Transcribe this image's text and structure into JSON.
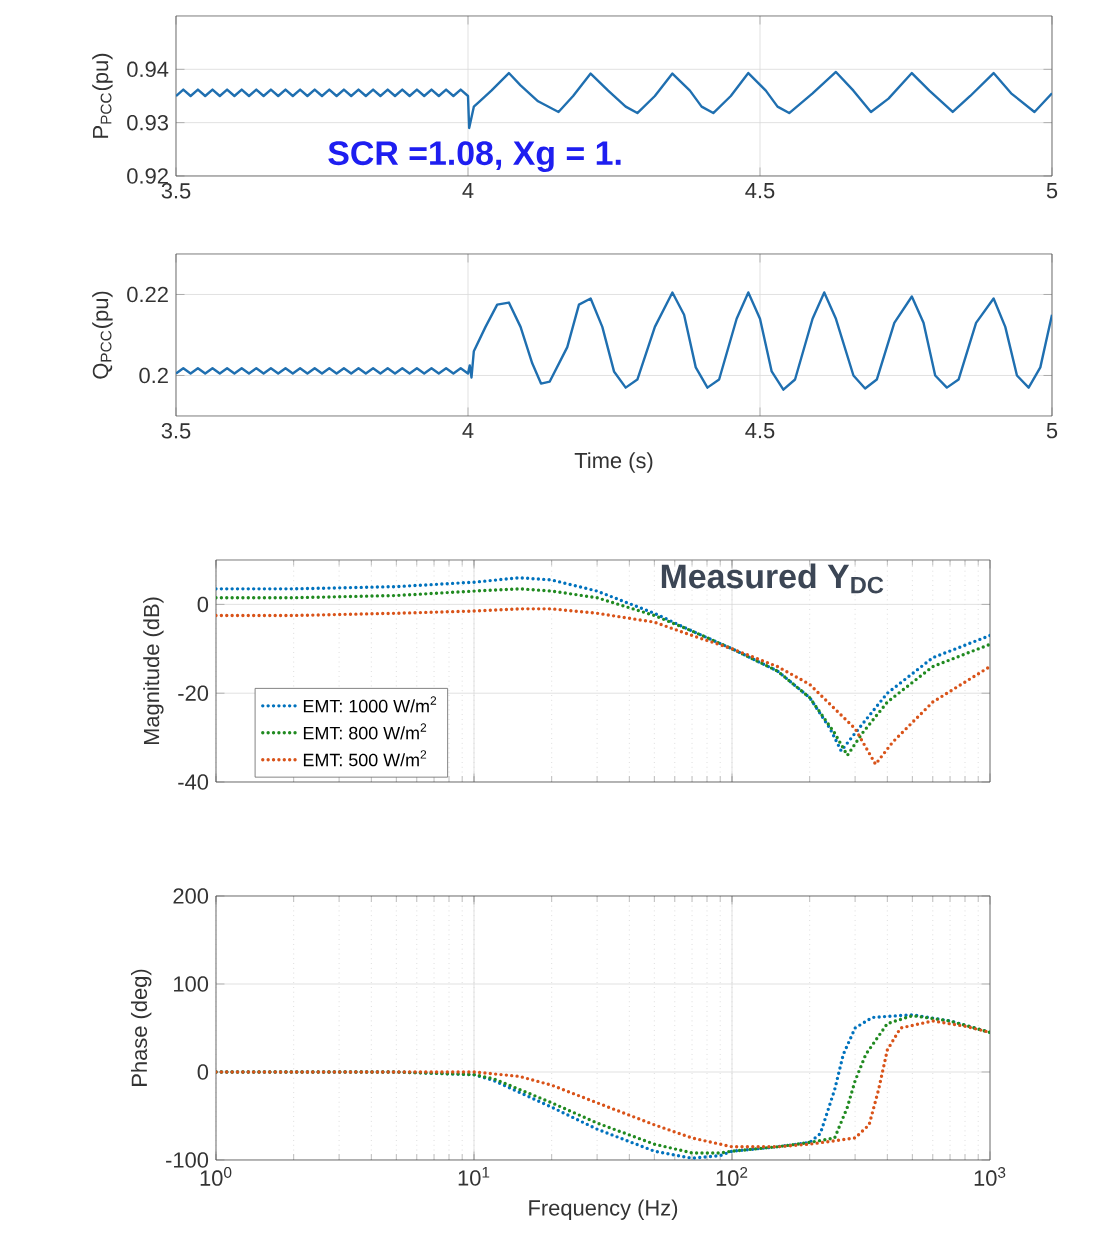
{
  "chart_data": [
    {
      "type": "line",
      "ylabel": "P$_{PCC}$(pu)",
      "xlim": [
        3.5,
        5
      ],
      "xticks": [
        3.5,
        4,
        4.5,
        5
      ],
      "ylim": [
        0.92,
        0.95
      ],
      "yticks": [
        0.92,
        0.93,
        0.94
      ],
      "grid": true,
      "annotations": [
        "SCR =1.08, Xg = 1."
      ],
      "x": [
        3.5,
        3.5125,
        3.525,
        3.5375,
        3.55,
        3.5625,
        3.575,
        3.5875,
        3.6,
        3.6125,
        3.625,
        3.6375,
        3.65,
        3.6625,
        3.675,
        3.6875,
        3.7,
        3.7125,
        3.725,
        3.7375,
        3.75,
        3.7625,
        3.775,
        3.7875,
        3.8,
        3.8125,
        3.825,
        3.8375,
        3.85,
        3.8625,
        3.875,
        3.8875,
        3.9,
        3.9125,
        3.925,
        3.9375,
        3.95,
        3.9625,
        3.975,
        3.9875,
        4.0,
        4.002,
        4.01,
        4.02,
        4.04,
        4.07,
        4.09,
        4.12,
        4.155,
        4.18,
        4.21,
        4.24,
        4.27,
        4.29,
        4.32,
        4.35,
        4.38,
        4.4,
        4.42,
        4.45,
        4.48,
        4.51,
        4.53,
        4.55,
        4.59,
        4.63,
        4.66,
        4.69,
        4.72,
        4.76,
        4.79,
        4.83,
        4.86,
        4.9,
        4.93,
        4.97,
        5.0
      ],
      "series": [
        {
          "color": "#1f6fb0",
          "values": [
            0.935,
            0.9362,
            0.935,
            0.9362,
            0.935,
            0.9362,
            0.935,
            0.9362,
            0.935,
            0.9362,
            0.935,
            0.9362,
            0.935,
            0.9362,
            0.935,
            0.9362,
            0.935,
            0.9362,
            0.935,
            0.9362,
            0.935,
            0.9362,
            0.935,
            0.9362,
            0.935,
            0.9362,
            0.935,
            0.9362,
            0.935,
            0.9362,
            0.935,
            0.9362,
            0.935,
            0.9362,
            0.935,
            0.9362,
            0.935,
            0.9362,
            0.935,
            0.9362,
            0.935,
            0.929,
            0.933,
            0.934,
            0.936,
            0.9393,
            0.937,
            0.934,
            0.932,
            0.935,
            0.9392,
            0.936,
            0.933,
            0.9318,
            0.935,
            0.9392,
            0.936,
            0.933,
            0.9318,
            0.935,
            0.9393,
            0.936,
            0.933,
            0.9318,
            0.9355,
            0.9395,
            0.936,
            0.932,
            0.9345,
            0.9393,
            0.936,
            0.932,
            0.935,
            0.9393,
            0.9355,
            0.932,
            0.9355
          ]
        }
      ]
    },
    {
      "type": "line",
      "ylabel": "Q$_{PCC}$(pu)",
      "xlabel": "Time (s)",
      "xlim": [
        3.5,
        5
      ],
      "xticks": [
        3.5,
        4,
        4.5,
        5
      ],
      "ylim": [
        0.19,
        0.23
      ],
      "yticks": [
        0.2,
        0.22
      ],
      "grid": true,
      "x": [
        3.5,
        3.5125,
        3.525,
        3.5375,
        3.55,
        3.5625,
        3.575,
        3.5875,
        3.6,
        3.6125,
        3.625,
        3.6375,
        3.65,
        3.6625,
        3.675,
        3.6875,
        3.7,
        3.7125,
        3.725,
        3.7375,
        3.75,
        3.7625,
        3.775,
        3.7875,
        3.8,
        3.8125,
        3.825,
        3.8375,
        3.85,
        3.8625,
        3.875,
        3.8875,
        3.9,
        3.9125,
        3.925,
        3.9375,
        3.95,
        3.9625,
        3.975,
        3.9875,
        4.0,
        4.003,
        4.006,
        4.01,
        4.03,
        4.05,
        4.07,
        4.09,
        4.11,
        4.125,
        4.14,
        4.17,
        4.19,
        4.21,
        4.23,
        4.25,
        4.27,
        4.29,
        4.32,
        4.35,
        4.37,
        4.39,
        4.41,
        4.43,
        4.46,
        4.48,
        4.5,
        4.52,
        4.54,
        4.56,
        4.59,
        4.61,
        4.63,
        4.66,
        4.68,
        4.7,
        4.73,
        4.76,
        4.78,
        4.8,
        4.82,
        4.84,
        4.87,
        4.9,
        4.92,
        4.94,
        4.96,
        4.98,
        5.0
      ],
      "series": [
        {
          "color": "#1f6fb0",
          "values": [
            0.2005,
            0.2018,
            0.2005,
            0.2018,
            0.2005,
            0.2018,
            0.2005,
            0.2018,
            0.2005,
            0.2018,
            0.2005,
            0.2018,
            0.2005,
            0.2018,
            0.2005,
            0.2018,
            0.2005,
            0.2018,
            0.2005,
            0.2018,
            0.2005,
            0.2018,
            0.2005,
            0.2018,
            0.2005,
            0.2018,
            0.2005,
            0.2018,
            0.2005,
            0.2018,
            0.2005,
            0.2018,
            0.2005,
            0.2018,
            0.2005,
            0.2018,
            0.2005,
            0.2018,
            0.2005,
            0.2018,
            0.2005,
            0.2025,
            0.1995,
            0.206,
            0.212,
            0.2175,
            0.218,
            0.212,
            0.203,
            0.198,
            0.1985,
            0.207,
            0.2175,
            0.219,
            0.212,
            0.201,
            0.197,
            0.199,
            0.212,
            0.2205,
            0.215,
            0.202,
            0.197,
            0.199,
            0.214,
            0.2205,
            0.214,
            0.201,
            0.1965,
            0.199,
            0.214,
            0.2205,
            0.214,
            0.2,
            0.1968,
            0.199,
            0.213,
            0.2195,
            0.213,
            0.2,
            0.197,
            0.199,
            0.213,
            0.219,
            0.212,
            0.2,
            0.197,
            0.202,
            0.215
          ]
        }
      ]
    },
    {
      "type": "line",
      "ylabel": "Magnitude (dB)",
      "log": "x",
      "xlim": [
        1,
        1000
      ],
      "xticks": [
        {
          "value": 1,
          "label": null
        },
        {
          "value": 10,
          "label": null
        },
        {
          "value": 100,
          "label": null
        },
        {
          "value": 1000,
          "label": null
        }
      ],
      "ylim": [
        -40,
        10
      ],
      "yticks": [
        -40,
        -20,
        0
      ],
      "grid": true,
      "tick_labels": "y",
      "legend": "bottom left",
      "line_style": "dotted",
      "annotations": [
        "Measured Y$_{DC}$"
      ],
      "series": [
        {
          "name": "EMT: 1000 W/m$^{2}$",
          "color": "#0072bd",
          "x": [
            1,
            2,
            5,
            10,
            15,
            20,
            30,
            50,
            70,
            100,
            150,
            200,
            240,
            265,
            300,
            400,
            600,
            1000
          ],
          "values": [
            3.5,
            3.5,
            4,
            5,
            6,
            5.5,
            3,
            -2,
            -6,
            -10,
            -15,
            -21,
            -28,
            -33,
            -29,
            -20,
            -12,
            -7
          ]
        },
        {
          "name": "EMT: 800 W/m$^{2}$",
          "color": "#208a20",
          "x": [
            1,
            2,
            5,
            10,
            15,
            20,
            30,
            50,
            70,
            100,
            150,
            200,
            250,
            280,
            320,
            400,
            600,
            1000
          ],
          "values": [
            1.5,
            1.5,
            2,
            3,
            3.5,
            3,
            1.5,
            -2.5,
            -6,
            -10,
            -15,
            -21,
            -29,
            -34,
            -29,
            -22,
            -14,
            -9
          ]
        },
        {
          "name": "EMT: 500 W/m$^{2}$",
          "color": "#d95319",
          "x": [
            1,
            2,
            5,
            10,
            15,
            20,
            30,
            50,
            70,
            100,
            150,
            200,
            300,
            360,
            420,
            600,
            1000
          ],
          "values": [
            -2.5,
            -2.5,
            -2,
            -1.5,
            -1,
            -1,
            -2,
            -4,
            -7,
            -10,
            -14,
            -18,
            -28,
            -36,
            -31,
            -22,
            -14
          ]
        }
      ]
    },
    {
      "type": "line",
      "ylabel": "Phase (deg)",
      "xlabel": "Frequency (Hz)",
      "log": "x",
      "xlim": [
        1,
        1000
      ],
      "xticks": [
        {
          "value": 1,
          "label": "10$^{0}$"
        },
        {
          "value": 10,
          "label": "10$^{1}$"
        },
        {
          "value": 100,
          "label": "10$^{2}$"
        },
        {
          "value": 1000,
          "label": "10$^{3}$"
        }
      ],
      "ylim": [
        -100,
        200
      ],
      "yticks": [
        -100,
        0,
        100,
        200
      ],
      "grid": true,
      "line_style": "dotted",
      "series": [
        {
          "color": "#0072bd",
          "x": [
            1,
            5,
            10,
            12,
            20,
            30,
            50,
            70,
            90,
            100,
            150,
            200,
            220,
            250,
            270,
            300,
            350,
            500,
            700,
            1000
          ],
          "values": [
            0,
            0,
            -3,
            -10,
            -40,
            -65,
            -90,
            -98,
            -95,
            -90,
            -85,
            -80,
            -70,
            -20,
            20,
            50,
            62,
            65,
            58,
            45
          ]
        },
        {
          "color": "#208a20",
          "x": [
            1,
            5,
            10,
            12,
            20,
            30,
            50,
            70,
            90,
            100,
            150,
            200,
            250,
            280,
            300,
            330,
            400,
            500,
            700,
            1000
          ],
          "values": [
            0,
            0,
            -3,
            -8,
            -35,
            -58,
            -82,
            -92,
            -92,
            -90,
            -85,
            -80,
            -75,
            -40,
            -10,
            20,
            55,
            64,
            58,
            45
          ]
        },
        {
          "color": "#d95319",
          "x": [
            1,
            5,
            10,
            15,
            20,
            30,
            50,
            70,
            100,
            150,
            200,
            300,
            340,
            370,
            400,
            450,
            600,
            800,
            1000
          ],
          "values": [
            0,
            0,
            0,
            -5,
            -15,
            -35,
            -60,
            -75,
            -85,
            -85,
            -82,
            -75,
            -60,
            -20,
            25,
            50,
            58,
            52,
            45
          ]
        }
      ]
    }
  ]
}
